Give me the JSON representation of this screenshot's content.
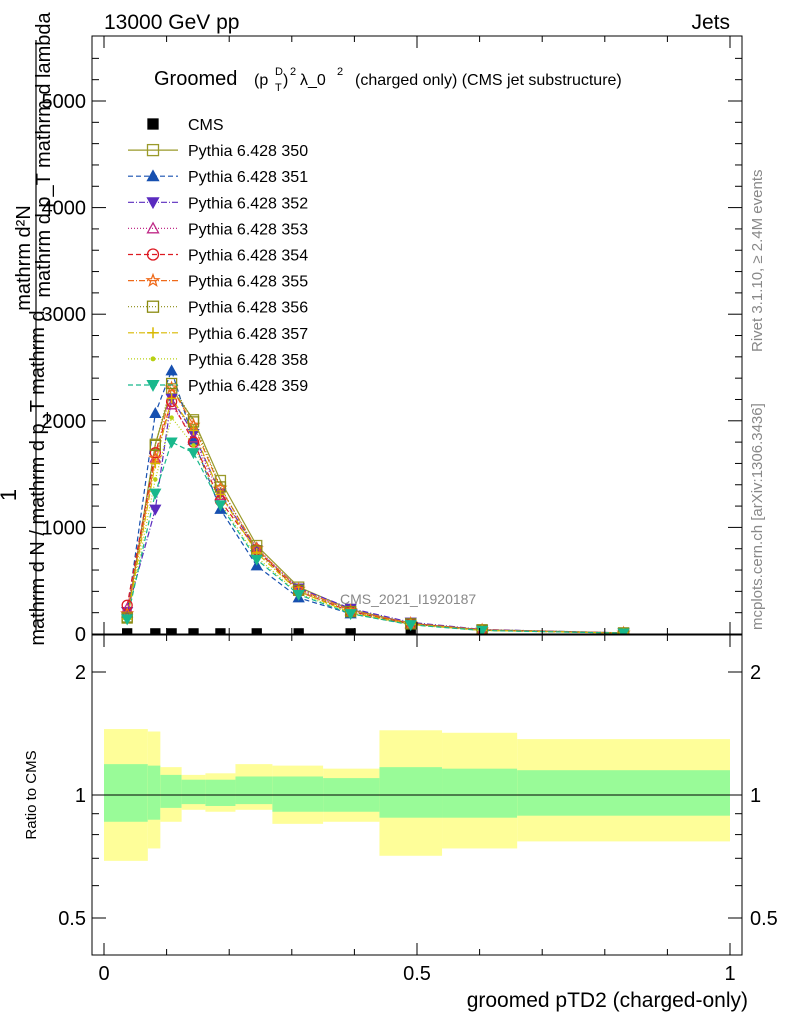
{
  "header": {
    "left": "13000 GeV pp",
    "right": "Jets"
  },
  "title": {
    "prefix": "Groomed",
    "formula": "(p",
    "sup1": "D",
    "sub1": "T",
    "close": ")",
    "sup2": "2",
    "lambda": "λ_0",
    "sup3": "2",
    "suffix": "(charged only) (CMS jet substructure)"
  },
  "side": {
    "rivet": "Rivet 3.1.10, ≥ 2.4M events",
    "mcplots": "mcplots.cern.ch [arXiv:1306.3436]"
  },
  "watermark": "CMS_2021_I1920187",
  "ylabel_main": {
    "line1": "mathrm d²N",
    "line2": "mathrm d p_T mathrm d lambda",
    "frac_num": "1",
    "frac_den": "mathrm d N / mathrm d p_T mathrm d"
  },
  "ylabel_ratio": "Ratio to CMS",
  "xlabel": "groomed pTD2 (charged-only)",
  "chart_data": [
    {
      "type": "line",
      "title": "Groomed (p_T^D)^2 λ_0^2 (charged only) (CMS jet substructure)",
      "xlim": [
        -0.02,
        1.02
      ],
      "ylim": [
        0,
        5600
      ],
      "yticks": [
        0,
        1000,
        2000,
        3000,
        4000,
        5000
      ],
      "ytick_labels": [
        "0",
        "1000",
        "2000",
        "3000",
        "4000",
        "5000"
      ],
      "xticks": [
        0,
        0.5,
        1
      ],
      "xtick_labels": [
        "0",
        "0.5",
        "1"
      ],
      "x": [
        0.037,
        0.082,
        0.108,
        0.143,
        0.186,
        0.244,
        0.311,
        0.394,
        0.49,
        0.604,
        0.83
      ],
      "cms_values": [
        6,
        6,
        6,
        6,
        6,
        6,
        6,
        6,
        6,
        6,
        6
      ],
      "series": [
        {
          "name": "CMS",
          "color": "#000000",
          "marker": "square-filled",
          "values": [
            6,
            6,
            6,
            6,
            6,
            6,
            6,
            6,
            6,
            6,
            6
          ]
        },
        {
          "name": "Pythia 6.428 350",
          "color": "#9a9a2a",
          "dash": "solid",
          "marker": "square-open",
          "values": [
            160,
            1780,
            2300,
            2010,
            1440,
            830,
            440,
            230,
            100,
            40,
            10
          ]
        },
        {
          "name": "Pythia 6.428 351",
          "color": "#1750b0",
          "dash": "5,3",
          "marker": "triangle-up-filled",
          "values": [
            200,
            2070,
            2470,
            1820,
            1170,
            640,
            340,
            190,
            90,
            35,
            8
          ]
        },
        {
          "name": "Pythia 6.428 352",
          "color": "#5a2bbf",
          "dash": "6,2,1,2",
          "marker": "triangle-down-filled",
          "values": [
            210,
            1170,
            2210,
            1880,
            1320,
            790,
            430,
            240,
            110,
            42,
            10
          ]
        },
        {
          "name": "Pythia 6.428 353",
          "color": "#c02b88",
          "dash": "1,2",
          "marker": "triangle-up-open",
          "values": [
            240,
            1650,
            2150,
            1840,
            1300,
            810,
            420,
            220,
            100,
            38,
            9
          ]
        },
        {
          "name": "Pythia 6.428 354",
          "color": "#dd1a22",
          "dash": "5,3",
          "marker": "circle-open",
          "values": [
            270,
            1700,
            2180,
            1800,
            1250,
            790,
            400,
            210,
            95,
            36,
            9
          ]
        },
        {
          "name": "Pythia 6.428 355",
          "color": "#ef6a1a",
          "dash": "6,2,1,2",
          "marker": "star-open",
          "values": [
            190,
            1650,
            2310,
            1960,
            1370,
            800,
            420,
            220,
            100,
            38,
            9
          ]
        },
        {
          "name": "Pythia 6.428 356",
          "color": "#8a8a10",
          "dash": "1,2",
          "marker": "square-open",
          "values": [
            150,
            1770,
            2350,
            1990,
            1380,
            780,
            410,
            210,
            95,
            36,
            9
          ]
        },
        {
          "name": "Pythia 6.428 357",
          "color": "#d8b800",
          "dash": "6,2,1,2",
          "marker": "cross",
          "values": [
            140,
            1600,
            2210,
            1910,
            1310,
            760,
            400,
            200,
            90,
            34,
            8
          ]
        },
        {
          "name": "Pythia 6.428 358",
          "color": "#b8d012",
          "dash": "1,2",
          "marker": "dot",
          "values": [
            130,
            1450,
            2030,
            1770,
            1230,
            720,
            380,
            195,
            88,
            33,
            8
          ]
        },
        {
          "name": "Pythia 6.428 359",
          "color": "#18b88c",
          "dash": "5,3",
          "marker": "triangle-down-filled",
          "values": [
            140,
            1320,
            1800,
            1700,
            1210,
            700,
            370,
            190,
            86,
            33,
            8
          ]
        }
      ]
    },
    {
      "type": "area",
      "title": "Ratio to CMS",
      "ylim": [
        0.41,
        2.3
      ],
      "yticks": [
        0.5,
        1,
        2
      ],
      "ytick_labels": [
        "0.5",
        "1",
        "2"
      ],
      "bin_edges": [
        0,
        0.07,
        0.09,
        0.124,
        0.162,
        0.21,
        0.269,
        0.35,
        0.44,
        0.54,
        0.66,
        1.0
      ],
      "band_inner_low": [
        0.86,
        0.87,
        0.93,
        0.95,
        0.94,
        0.95,
        0.91,
        0.91,
        0.88,
        0.88,
        0.89
      ],
      "band_inner_high": [
        1.19,
        1.18,
        1.12,
        1.09,
        1.09,
        1.11,
        1.11,
        1.1,
        1.17,
        1.16,
        1.15
      ],
      "band_outer_low": [
        0.69,
        0.74,
        0.86,
        0.92,
        0.91,
        0.92,
        0.85,
        0.86,
        0.71,
        0.74,
        0.77
      ],
      "band_outer_high": [
        1.45,
        1.43,
        1.17,
        1.12,
        1.13,
        1.19,
        1.18,
        1.16,
        1.44,
        1.42,
        1.37
      ],
      "inner_color": "#99fb98",
      "outer_color": "#fefe99"
    }
  ]
}
